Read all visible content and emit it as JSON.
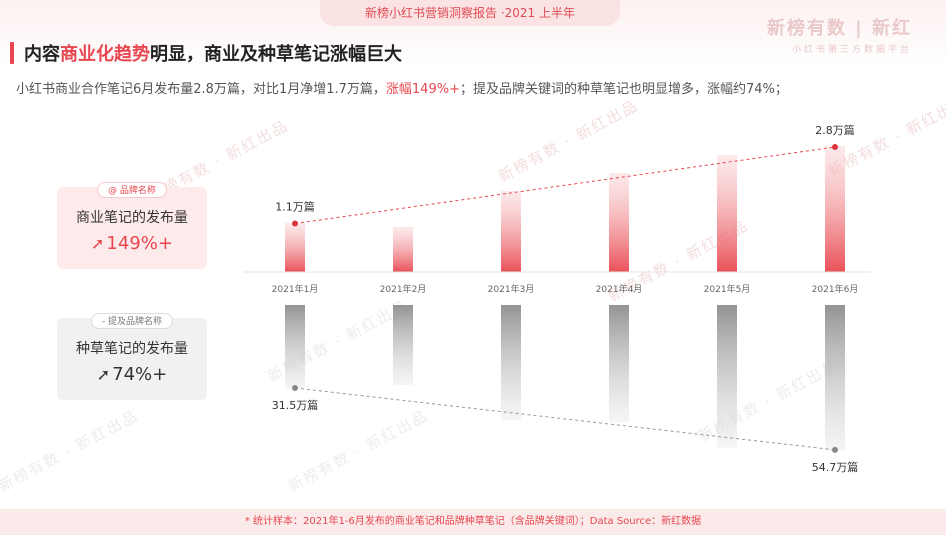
{
  "header": {
    "report_tab": "新榜小红书营销洞察报告 ·2021 上半年",
    "brand_main": "新榜有数 | 新红",
    "brand_sub": "小红书第三方数据平台",
    "title_a": "内容",
    "title_highlight": "商业化趋势",
    "title_b": "明显，商业及种草笔记涨幅巨大",
    "subtitle_a": "小红书商业合作笔记6月发布量2.8万篇，对比1月净增1.7万篇，",
    "subtitle_highlight": "涨幅149%+",
    "subtitle_b": "；提及品牌关键词的种草笔记也明显增多，涨幅约74%；"
  },
  "cards": {
    "commercial": {
      "tag": "@ 品牌名称",
      "label": "商业笔记的发布量",
      "growth": "149%+"
    },
    "seeding": {
      "tag": "- 提及品牌名称",
      "label": "种草笔记的发布量",
      "growth": "74%+"
    }
  },
  "watermark": "新榜有数 · 新红出品",
  "footer": "* 统计样本：2021年1-6月发布的商业笔记和品牌种草笔记（含品牌关键词）；Data Source：新红数据",
  "chart_data": {
    "type": "bar",
    "categories": [
      "2021年1月",
      "2021年2月",
      "2021年3月",
      "2021年4月",
      "2021年5月",
      "2021年6月"
    ],
    "series": [
      {
        "name": "商业笔记的发布量",
        "unit": "万篇",
        "values": [
          1.1,
          1.0,
          1.8,
          2.2,
          2.6,
          2.8
        ],
        "color": "#e8474f"
      },
      {
        "name": "种草笔记的发布量",
        "unit": "万篇",
        "values": [
          31.5,
          30.0,
          43.0,
          44.0,
          53.5,
          54.7
        ],
        "color": "#9a9a9a"
      }
    ],
    "labels": [
      {
        "series": 0,
        "index": 0,
        "text": "1.1万篇"
      },
      {
        "series": 0,
        "index": 5,
        "text": "2.8万篇"
      },
      {
        "series": 1,
        "index": 0,
        "text": "31.5万篇"
      },
      {
        "series": 1,
        "index": 5,
        "text": "54.7万篇"
      }
    ],
    "trend_lines": "dashed from January to June for each series",
    "layout": "commercial bars grow upward above the month axis; seeding bars hang downward below it",
    "ylim_commercial": [
      0,
      3.0
    ],
    "ylim_seeding": [
      0,
      60
    ]
  }
}
